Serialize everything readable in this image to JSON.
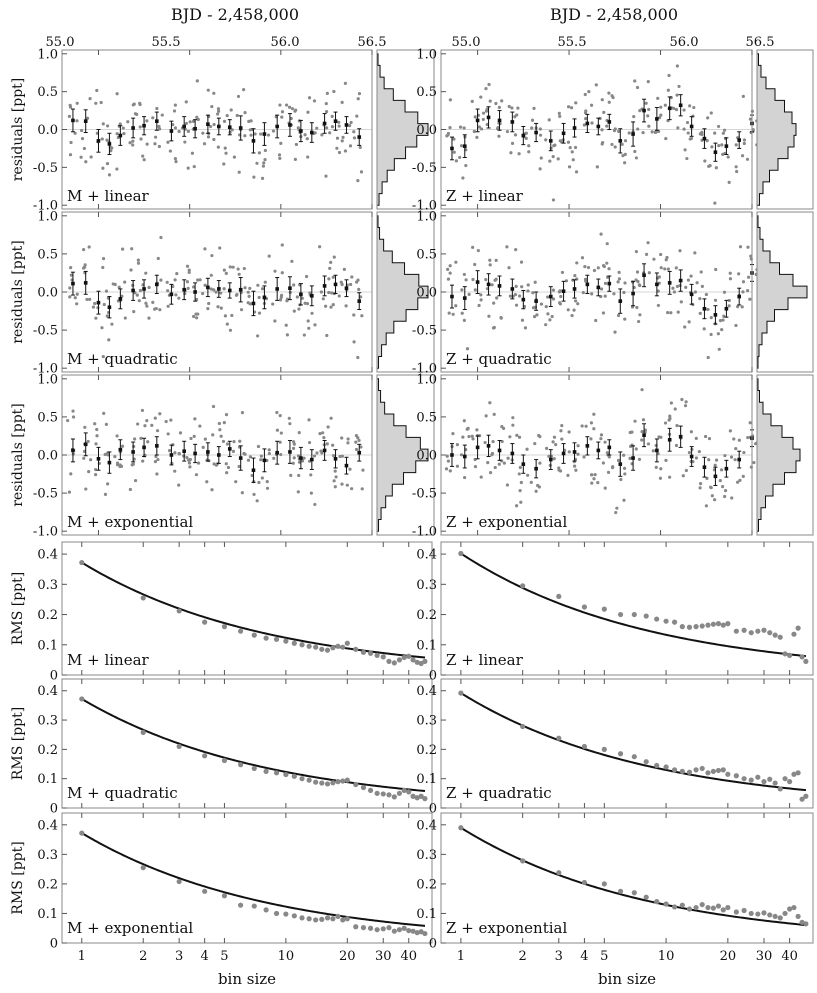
{
  "figure": {
    "top_axis_label": "BJD - 2,458,000",
    "top_ticks": [
      "55.0",
      "55.5",
      "56.0",
      "56.5"
    ],
    "residual_ylabel": "residuals [ppt]",
    "rms_ylabel": "RMS [ppt]",
    "bin_xlabel": "bin size",
    "residual_yticks": [
      "1.0",
      "0.5",
      "0.0",
      "-0.5",
      "-1.0"
    ],
    "rms_yticks": [
      "0.4",
      "0.3",
      "0.2",
      "0.1",
      "0"
    ],
    "bin_ticks": [
      "1",
      "2",
      "3",
      "4",
      "5",
      "10",
      "20",
      "30",
      "40"
    ]
  },
  "chart_data": [
    {
      "type": "scatter",
      "kind": "residuals",
      "column": 0,
      "row": 0,
      "label": "M + linear",
      "xlabel": "BJD - 2,458,000",
      "ylabel": "residuals [ppt]",
      "xlim": [
        54.8,
        56.5
      ],
      "ylim": [
        -1.05,
        1.05
      ],
      "binned_points": [
        [
          54.86,
          0.12
        ],
        [
          54.93,
          0.11
        ],
        [
          55.0,
          -0.15
        ],
        [
          55.06,
          -0.19
        ],
        [
          55.12,
          -0.08
        ],
        [
          55.19,
          0.02
        ],
        [
          55.25,
          0.05
        ],
        [
          55.32,
          0.11
        ],
        [
          55.4,
          -0.02
        ],
        [
          55.47,
          0.04
        ],
        [
          55.53,
          0.01
        ],
        [
          55.6,
          0.07
        ],
        [
          55.66,
          0.04
        ],
        [
          55.72,
          0.03
        ],
        [
          55.78,
          0.02
        ],
        [
          55.85,
          -0.15
        ],
        [
          55.91,
          -0.06
        ],
        [
          55.98,
          0.04
        ],
        [
          56.05,
          0.06
        ],
        [
          56.11,
          -0.02
        ],
        [
          56.17,
          -0.04
        ],
        [
          56.24,
          0.08
        ],
        [
          56.3,
          0.11
        ],
        [
          56.36,
          0.06
        ],
        [
          56.43,
          -0.1
        ]
      ],
      "histogram_bins": [
        0.02,
        0.06,
        0.14,
        0.32,
        0.55,
        0.8,
        1.0,
        0.78,
        0.56,
        0.34,
        0.2,
        0.1,
        0.04
      ]
    },
    {
      "type": "scatter",
      "kind": "residuals",
      "column": 0,
      "row": 1,
      "label": "M + quadratic",
      "xlabel": "BJD - 2,458,000",
      "ylabel": "residuals [ppt]",
      "xlim": [
        54.8,
        56.5
      ],
      "ylim": [
        -1.05,
        1.05
      ],
      "binned_points": [
        [
          54.86,
          0.11
        ],
        [
          54.93,
          0.12
        ],
        [
          55.0,
          -0.14
        ],
        [
          55.06,
          -0.2
        ],
        [
          55.12,
          -0.09
        ],
        [
          55.19,
          0.02
        ],
        [
          55.25,
          0.04
        ],
        [
          55.32,
          0.1
        ],
        [
          55.4,
          -0.03
        ],
        [
          55.47,
          0.03
        ],
        [
          55.53,
          0.0
        ],
        [
          55.6,
          0.06
        ],
        [
          55.66,
          0.04
        ],
        [
          55.72,
          0.02
        ],
        [
          55.78,
          0.03
        ],
        [
          55.85,
          -0.15
        ],
        [
          55.91,
          -0.07
        ],
        [
          55.98,
          0.04
        ],
        [
          56.05,
          0.05
        ],
        [
          56.11,
          -0.03
        ],
        [
          56.17,
          -0.05
        ],
        [
          56.24,
          0.08
        ],
        [
          56.3,
          0.1
        ],
        [
          56.36,
          0.05
        ],
        [
          56.43,
          -0.12
        ]
      ],
      "histogram_bins": [
        0.02,
        0.05,
        0.13,
        0.3,
        0.54,
        0.82,
        1.0,
        0.8,
        0.57,
        0.33,
        0.18,
        0.09,
        0.03
      ]
    },
    {
      "type": "scatter",
      "kind": "residuals",
      "column": 0,
      "row": 2,
      "label": "M + exponential",
      "xlabel": "BJD - 2,458,000",
      "ylabel": "residuals [ppt]",
      "xlim": [
        54.8,
        56.5
      ],
      "ylim": [
        -1.05,
        1.05
      ],
      "binned_points": [
        [
          54.86,
          0.06
        ],
        [
          54.93,
          0.14
        ],
        [
          55.0,
          -0.05
        ],
        [
          55.06,
          -0.1
        ],
        [
          55.12,
          0.07
        ],
        [
          55.19,
          0.04
        ],
        [
          55.25,
          0.1
        ],
        [
          55.32,
          0.12
        ],
        [
          55.4,
          0.0
        ],
        [
          55.47,
          0.05
        ],
        [
          55.53,
          0.02
        ],
        [
          55.6,
          0.04
        ],
        [
          55.66,
          0.0
        ],
        [
          55.72,
          0.08
        ],
        [
          55.78,
          -0.04
        ],
        [
          55.85,
          -0.2
        ],
        [
          55.91,
          -0.07
        ],
        [
          55.98,
          0.03
        ],
        [
          56.05,
          0.04
        ],
        [
          56.11,
          -0.04
        ],
        [
          56.17,
          -0.06
        ],
        [
          56.24,
          0.06
        ],
        [
          56.3,
          -0.05
        ],
        [
          56.36,
          -0.14
        ],
        [
          56.43,
          0.03
        ]
      ],
      "histogram_bins": [
        0.03,
        0.07,
        0.15,
        0.33,
        0.57,
        0.85,
        1.0,
        0.76,
        0.52,
        0.3,
        0.17,
        0.08,
        0.03
      ]
    },
    {
      "type": "scatter",
      "kind": "residuals",
      "column": 1,
      "row": 0,
      "label": "Z + linear",
      "xlabel": "BJD - 2,458,000",
      "ylabel": "residuals [ppt]",
      "xlim": [
        54.8,
        56.5
      ],
      "ylim": [
        -1.05,
        1.05
      ],
      "binned_points": [
        [
          54.86,
          -0.25
        ],
        [
          54.93,
          -0.22
        ],
        [
          55.0,
          0.12
        ],
        [
          55.06,
          0.16
        ],
        [
          55.12,
          0.12
        ],
        [
          55.19,
          0.1
        ],
        [
          55.25,
          -0.08
        ],
        [
          55.32,
          -0.04
        ],
        [
          55.4,
          -0.15
        ],
        [
          55.47,
          -0.05
        ],
        [
          55.53,
          0.02
        ],
        [
          55.6,
          0.08
        ],
        [
          55.66,
          0.04
        ],
        [
          55.72,
          0.1
        ],
        [
          55.78,
          -0.15
        ],
        [
          55.85,
          -0.06
        ],
        [
          55.91,
          0.25
        ],
        [
          55.98,
          0.14
        ],
        [
          56.05,
          0.28
        ],
        [
          56.11,
          0.32
        ],
        [
          56.17,
          0.04
        ],
        [
          56.24,
          -0.12
        ],
        [
          56.3,
          -0.3
        ],
        [
          56.36,
          -0.22
        ],
        [
          56.43,
          -0.14
        ],
        [
          56.5,
          0.08
        ]
      ],
      "histogram_bins": [
        0.03,
        0.08,
        0.18,
        0.36,
        0.55,
        0.7,
        0.78,
        0.74,
        0.62,
        0.42,
        0.25,
        0.12,
        0.05
      ]
    },
    {
      "type": "scatter",
      "kind": "residuals",
      "column": 1,
      "row": 1,
      "label": "Z + quadratic",
      "xlabel": "BJD - 2,458,000",
      "ylabel": "residuals [ppt]",
      "xlim": [
        54.8,
        56.5
      ],
      "ylim": [
        -1.05,
        1.05
      ],
      "binned_points": [
        [
          54.86,
          -0.06
        ],
        [
          54.93,
          -0.08
        ],
        [
          55.0,
          0.13
        ],
        [
          55.06,
          0.1
        ],
        [
          55.12,
          0.08
        ],
        [
          55.19,
          0.04
        ],
        [
          55.25,
          -0.1
        ],
        [
          55.32,
          -0.12
        ],
        [
          55.4,
          -0.06
        ],
        [
          55.47,
          0.01
        ],
        [
          55.53,
          0.04
        ],
        [
          55.6,
          0.1
        ],
        [
          55.66,
          0.06
        ],
        [
          55.72,
          0.11
        ],
        [
          55.78,
          -0.12
        ],
        [
          55.85,
          -0.02
        ],
        [
          55.91,
          0.22
        ],
        [
          55.98,
          0.1
        ],
        [
          56.05,
          0.12
        ],
        [
          56.11,
          0.15
        ],
        [
          56.17,
          -0.03
        ],
        [
          56.24,
          -0.22
        ],
        [
          56.3,
          -0.3
        ],
        [
          56.36,
          -0.22
        ],
        [
          56.43,
          -0.06
        ],
        [
          56.5,
          0.25
        ]
      ],
      "histogram_bins": [
        0.02,
        0.06,
        0.12,
        0.26,
        0.45,
        0.72,
        1.0,
        0.62,
        0.35,
        0.2,
        0.1,
        0.04,
        0.02
      ]
    },
    {
      "type": "scatter",
      "kind": "residuals",
      "column": 1,
      "row": 2,
      "label": "Z + exponential",
      "xlabel": "BJD - 2,458,000",
      "ylabel": "residuals [ppt]",
      "xlim": [
        54.8,
        56.5
      ],
      "ylim": [
        -1.05,
        1.05
      ],
      "binned_points": [
        [
          54.86,
          0.0
        ],
        [
          54.93,
          -0.02
        ],
        [
          55.0,
          0.1
        ],
        [
          55.06,
          0.12
        ],
        [
          55.12,
          0.06
        ],
        [
          55.19,
          0.02
        ],
        [
          55.25,
          -0.12
        ],
        [
          55.32,
          -0.18
        ],
        [
          55.4,
          -0.06
        ],
        [
          55.47,
          0.02
        ],
        [
          55.53,
          0.04
        ],
        [
          55.6,
          0.12
        ],
        [
          55.66,
          0.06
        ],
        [
          55.72,
          0.1
        ],
        [
          55.78,
          -0.12
        ],
        [
          55.85,
          -0.04
        ],
        [
          55.91,
          0.26
        ],
        [
          55.98,
          0.06
        ],
        [
          56.05,
          0.2
        ],
        [
          56.11,
          0.24
        ],
        [
          56.17,
          -0.02
        ],
        [
          56.24,
          -0.16
        ],
        [
          56.3,
          -0.28
        ],
        [
          56.36,
          -0.18
        ],
        [
          56.43,
          -0.06
        ],
        [
          56.5,
          0.22
        ]
      ],
      "histogram_bins": [
        0.02,
        0.05,
        0.12,
        0.28,
        0.5,
        0.72,
        0.86,
        0.78,
        0.55,
        0.32,
        0.17,
        0.08,
        0.03
      ]
    },
    {
      "type": "scatter",
      "kind": "rms",
      "column": 0,
      "row": 3,
      "label": "M + linear",
      "xlabel": "bin size",
      "ylabel": "RMS [ppt]",
      "xscale": "log",
      "xlim": [
        0.8,
        52
      ],
      "ylim": [
        0,
        0.44
      ],
      "x": [
        1,
        2,
        3,
        4,
        5,
        6,
        7,
        8,
        9,
        10,
        11,
        12,
        13,
        14,
        15,
        16,
        17,
        18,
        19,
        20,
        22,
        24,
        26,
        28,
        30,
        32,
        34,
        36,
        38,
        40,
        42,
        44,
        46,
        48
      ],
      "rms": [
        0.372,
        0.255,
        0.212,
        0.175,
        0.16,
        0.145,
        0.132,
        0.122,
        0.118,
        0.112,
        0.105,
        0.1,
        0.095,
        0.092,
        0.085,
        0.082,
        0.09,
        0.095,
        0.092,
        0.105,
        0.085,
        0.075,
        0.072,
        0.065,
        0.06,
        0.045,
        0.04,
        0.05,
        0.058,
        0.062,
        0.05,
        0.042,
        0.038,
        0.045
      ]
    },
    {
      "type": "scatter",
      "kind": "rms",
      "column": 0,
      "row": 4,
      "label": "M + quadratic",
      "xlabel": "bin size",
      "ylabel": "RMS [ppt]",
      "xscale": "log",
      "xlim": [
        0.8,
        52
      ],
      "ylim": [
        0,
        0.44
      ],
      "x": [
        1,
        2,
        3,
        4,
        5,
        6,
        7,
        8,
        9,
        10,
        11,
        12,
        13,
        14,
        15,
        16,
        17,
        18,
        19,
        20,
        22,
        24,
        26,
        28,
        30,
        32,
        34,
        36,
        38,
        40,
        42,
        44,
        46,
        48
      ],
      "rms": [
        0.372,
        0.258,
        0.21,
        0.178,
        0.162,
        0.148,
        0.135,
        0.125,
        0.12,
        0.114,
        0.108,
        0.1,
        0.095,
        0.088,
        0.085,
        0.082,
        0.086,
        0.09,
        0.092,
        0.095,
        0.08,
        0.07,
        0.06,
        0.05,
        0.048,
        0.045,
        0.038,
        0.05,
        0.06,
        0.055,
        0.04,
        0.035,
        0.04,
        0.032
      ]
    },
    {
      "type": "scatter",
      "kind": "rms",
      "column": 0,
      "row": 5,
      "label": "M + exponential",
      "xlabel": "bin size",
      "ylabel": "RMS [ppt]",
      "xscale": "log",
      "xlim": [
        0.8,
        52
      ],
      "ylim": [
        0,
        0.44
      ],
      "x": [
        1,
        2,
        3,
        4,
        5,
        6,
        7,
        8,
        9,
        10,
        11,
        12,
        13,
        14,
        15,
        16,
        17,
        18,
        19,
        20,
        22,
        24,
        26,
        28,
        30,
        32,
        34,
        36,
        38,
        40,
        42,
        44,
        46,
        48
      ],
      "rms": [
        0.372,
        0.255,
        0.208,
        0.175,
        0.16,
        0.128,
        0.125,
        0.112,
        0.1,
        0.098,
        0.092,
        0.085,
        0.082,
        0.078,
        0.08,
        0.085,
        0.082,
        0.09,
        0.078,
        0.082,
        0.055,
        0.052,
        0.05,
        0.045,
        0.048,
        0.052,
        0.04,
        0.045,
        0.05,
        0.042,
        0.04,
        0.035,
        0.038,
        0.032
      ]
    },
    {
      "type": "scatter",
      "kind": "rms",
      "column": 1,
      "row": 3,
      "label": "Z + linear",
      "xlabel": "bin size",
      "ylabel": "RMS [ppt]",
      "xscale": "log",
      "xlim": [
        0.8,
        52
      ],
      "ylim": [
        0,
        0.44
      ],
      "x": [
        1,
        2,
        3,
        4,
        5,
        6,
        7,
        8,
        9,
        10,
        11,
        12,
        13,
        14,
        15,
        16,
        17,
        18,
        19,
        20,
        22,
        24,
        26,
        28,
        30,
        32,
        34,
        36,
        38,
        40,
        42,
        44,
        46,
        48
      ],
      "rms": [
        0.402,
        0.295,
        0.26,
        0.225,
        0.218,
        0.2,
        0.2,
        0.195,
        0.185,
        0.178,
        0.175,
        0.16,
        0.158,
        0.16,
        0.162,
        0.165,
        0.168,
        0.17,
        0.165,
        0.17,
        0.145,
        0.148,
        0.14,
        0.145,
        0.148,
        0.14,
        0.132,
        0.125,
        0.07,
        0.065,
        0.135,
        0.155,
        0.06,
        0.045
      ]
    },
    {
      "type": "scatter",
      "kind": "rms",
      "column": 1,
      "row": 4,
      "label": "Z + quadratic",
      "xlabel": "bin size",
      "ylabel": "RMS [ppt]",
      "xscale": "log",
      "xlim": [
        0.8,
        52
      ],
      "ylim": [
        0,
        0.44
      ],
      "x": [
        1,
        2,
        3,
        4,
        5,
        6,
        7,
        8,
        9,
        10,
        11,
        12,
        13,
        14,
        15,
        16,
        17,
        18,
        19,
        20,
        22,
        24,
        26,
        28,
        30,
        32,
        34,
        36,
        38,
        40,
        42,
        44,
        46,
        48
      ],
      "rms": [
        0.392,
        0.278,
        0.238,
        0.21,
        0.2,
        0.185,
        0.175,
        0.158,
        0.145,
        0.14,
        0.13,
        0.125,
        0.122,
        0.13,
        0.135,
        0.12,
        0.125,
        0.128,
        0.13,
        0.115,
        0.11,
        0.1,
        0.095,
        0.105,
        0.09,
        0.098,
        0.085,
        0.065,
        0.1,
        0.09,
        0.115,
        0.12,
        0.03,
        0.04
      ]
    },
    {
      "type": "scatter",
      "kind": "rms",
      "column": 1,
      "row": 5,
      "label": "Z + exponential",
      "xlabel": "bin size",
      "ylabel": "RMS [ppt]",
      "xscale": "log",
      "xlim": [
        0.8,
        52
      ],
      "ylim": [
        0,
        0.44
      ],
      "x": [
        1,
        2,
        3,
        4,
        5,
        6,
        7,
        8,
        9,
        10,
        11,
        12,
        13,
        14,
        15,
        16,
        17,
        18,
        19,
        20,
        22,
        24,
        26,
        28,
        30,
        32,
        34,
        36,
        38,
        40,
        42,
        44,
        46,
        48
      ],
      "rms": [
        0.39,
        0.278,
        0.238,
        0.205,
        0.2,
        0.175,
        0.17,
        0.155,
        0.14,
        0.132,
        0.122,
        0.128,
        0.115,
        0.12,
        0.13,
        0.12,
        0.118,
        0.125,
        0.112,
        0.12,
        0.105,
        0.11,
        0.1,
        0.098,
        0.102,
        0.095,
        0.09,
        0.085,
        0.1,
        0.115,
        0.12,
        0.09,
        0.07,
        0.065
      ]
    }
  ]
}
